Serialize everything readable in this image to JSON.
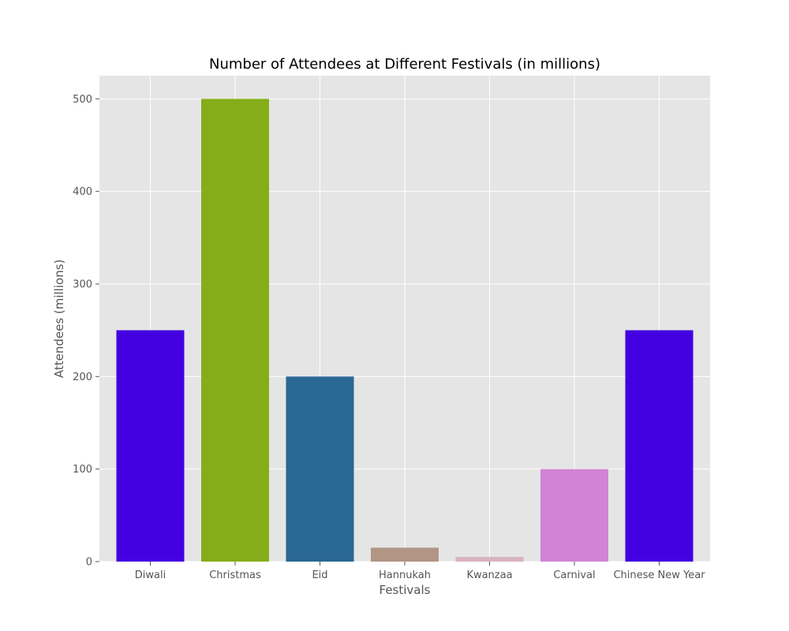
{
  "chart_data": {
    "type": "bar",
    "title": "Number of Attendees at Different Festivals (in millions)",
    "xlabel": "Festivals",
    "ylabel": "Attendees (millions)",
    "categories": [
      "Diwali",
      "Christmas",
      "Eid",
      "Hannukah",
      "Kwanzaa",
      "Carnival",
      "Chinese New Year"
    ],
    "values": [
      250,
      500,
      200,
      15,
      5,
      100,
      250
    ],
    "colors": [
      "#4300e0",
      "#85ad1a",
      "#296894",
      "#b29584",
      "#d9b2c0",
      "#d184d4",
      "#4300e0"
    ],
    "ylim": [
      0,
      525
    ],
    "yticks": [
      0,
      100,
      200,
      300,
      400,
      500
    ],
    "grid": true,
    "background": "#e5e5e5"
  }
}
